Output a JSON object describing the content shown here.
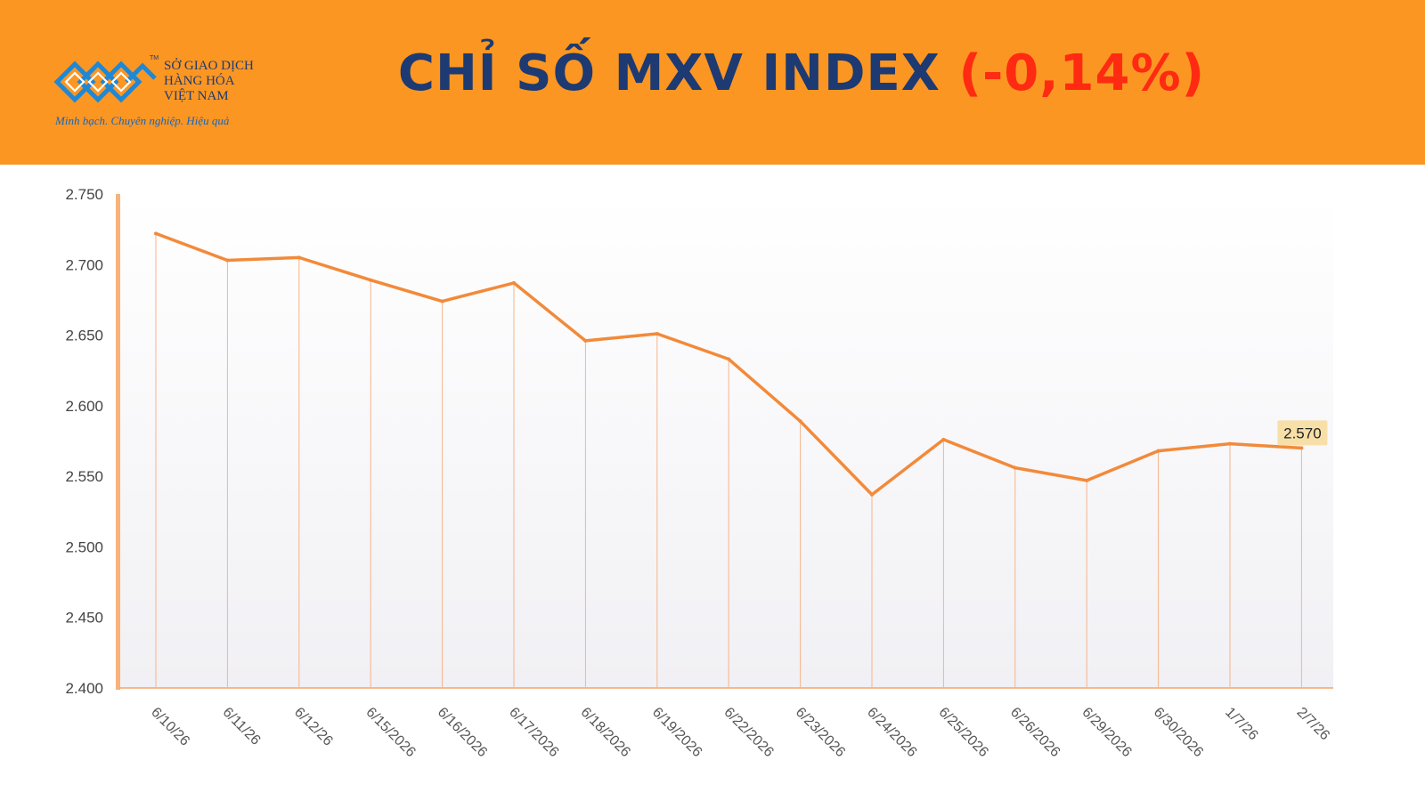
{
  "header": {
    "logo": {
      "icon": "mxv-logo-icon",
      "tm": "TM",
      "lines": [
        "SỞ GIAO DỊCH",
        "HÀNG HÓA",
        "VIỆT NAM"
      ],
      "slogan": "Minh bạch. Chuyên nghiệp. Hiệu quả"
    },
    "title": "CHỈ SỐ MXV INDEX",
    "change": "(-0,14%)",
    "background_color": "#fb9623",
    "title_color": "#1d3a72",
    "change_color": "#ff2a12"
  },
  "chart_data": {
    "type": "line",
    "title": "",
    "xlabel": "",
    "ylabel": "",
    "categories": [
      "6/10/26",
      "6/11/26",
      "6/12/26",
      "6/15/2026",
      "6/16/2026",
      "6/17/2026",
      "6/18/2026",
      "6/19/2026",
      "6/22/2026",
      "6/23/2026",
      "6/24/2026",
      "6/25/2026",
      "6/26/2026",
      "6/29/2026",
      "6/30/2026",
      "1/7/26",
      "2/7/26"
    ],
    "values": [
      2722,
      2703,
      2705,
      2689,
      2674,
      2687,
      2646,
      2651,
      2633,
      2589,
      2537,
      2576,
      2556,
      2547,
      2568,
      2573,
      2570
    ],
    "ylim": [
      2400,
      2750
    ],
    "yticks": [
      2400,
      2450,
      2500,
      2550,
      2600,
      2650,
      2700,
      2750
    ],
    "ytick_labels": [
      "2.400",
      "2.450",
      "2.500",
      "2.550",
      "2.600",
      "2.650",
      "2.700",
      "2.750"
    ],
    "last_value_label": "2.570",
    "line_color": "#f28a3a",
    "drop_line_color": "#f5b58a",
    "label_bg_color": "#f7dfa8",
    "grid": false,
    "legend": "none"
  }
}
